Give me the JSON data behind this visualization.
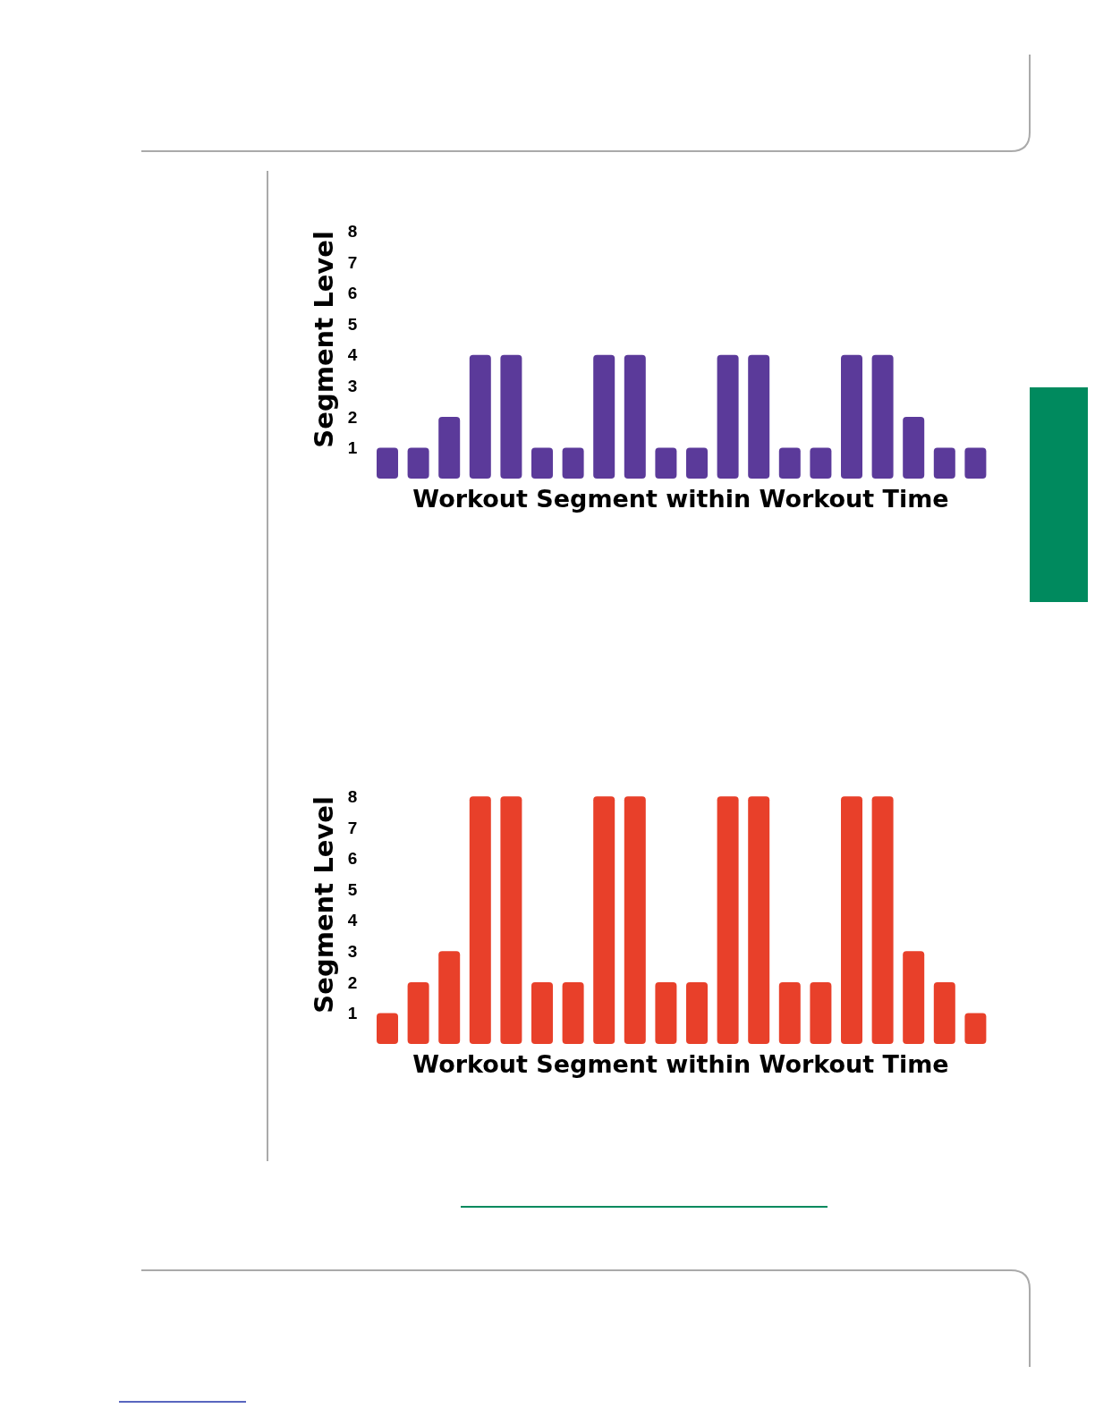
{
  "chart_data": [
    {
      "type": "bar",
      "categories": [
        null,
        null,
        null,
        null,
        null,
        null,
        null,
        null,
        null,
        null,
        null,
        null,
        null,
        null,
        null,
        null,
        null,
        null,
        null,
        null
      ],
      "values": [
        1,
        1,
        2,
        4,
        4,
        1,
        1,
        4,
        4,
        1,
        1,
        4,
        4,
        1,
        1,
        4,
        4,
        2,
        1,
        1
      ],
      "color": "#5b3a9a",
      "ylim": [
        0,
        8
      ],
      "yticks": [
        1,
        2,
        3,
        4,
        5,
        6,
        7,
        8
      ],
      "xlabel": "Workout Segment within Workout Time",
      "ylabel": "Segment Level",
      "tick_labels": "y",
      "grid": false
    },
    {
      "type": "bar",
      "categories": [
        null,
        null,
        null,
        null,
        null,
        null,
        null,
        null,
        null,
        null,
        null,
        null,
        null,
        null,
        null,
        null,
        null,
        null,
        null,
        null
      ],
      "values": [
        1,
        2,
        3,
        8,
        8,
        2,
        2,
        8,
        8,
        2,
        2,
        8,
        8,
        2,
        2,
        8,
        8,
        3,
        2,
        1
      ],
      "color": "#e8402a",
      "ylim": [
        0,
        8
      ],
      "yticks": [
        1,
        2,
        3,
        4,
        5,
        6,
        7,
        8
      ],
      "xlabel": "Workout Segment within Workout Time",
      "ylabel": "Segment Level",
      "tick_labels": "y",
      "grid": false
    }
  ]
}
